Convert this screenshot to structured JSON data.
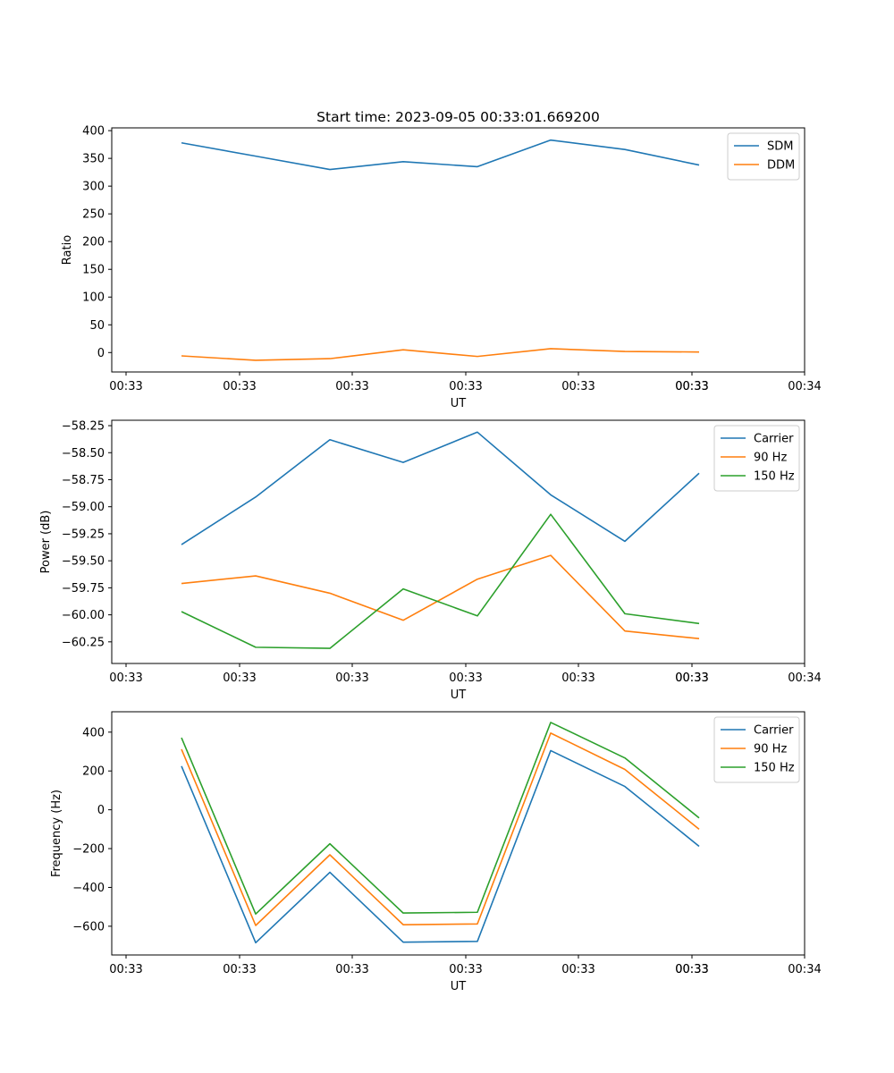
{
  "figure_title": "Start time: 2023-09-05 00:33:01.669200",
  "chart_data": [
    {
      "type": "line",
      "title": "Start time: 2023-09-05 00:33:01.669200",
      "xlabel": "UT",
      "ylabel": "Ratio",
      "x_tick_labels": [
        "00:33",
        "00:33",
        "00:33",
        "00:33",
        "00:33",
        "00:33",
        "00:33"
      ],
      "x_end_label": "00:34",
      "yticks": [
        0,
        50,
        100,
        150,
        200,
        250,
        300,
        350,
        400
      ],
      "ylim": [
        -35,
        405
      ],
      "legend_location": "upper right",
      "series": [
        {
          "name": "SDM",
          "color": "#1f77b4",
          "values": [
            378,
            354,
            330,
            344,
            335,
            383,
            366,
            338
          ]
        },
        {
          "name": "DDM",
          "color": "#ff7f0e",
          "values": [
            -6,
            -14,
            -11,
            5,
            -7,
            7,
            2,
            1
          ]
        }
      ]
    },
    {
      "type": "line",
      "title": "",
      "xlabel": "UT",
      "ylabel": "Power (dB)",
      "x_tick_labels": [
        "00:33",
        "00:33",
        "00:33",
        "00:33",
        "00:33",
        "00:33",
        "00:33"
      ],
      "x_end_label": "00:34",
      "yticks": [
        -60.25,
        -60.0,
        -59.75,
        -59.5,
        -59.25,
        -59.0,
        -58.75,
        -58.5,
        -58.25
      ],
      "ytick_labels": [
        "−60.25",
        "−60.00",
        "−59.75",
        "−59.50",
        "−59.25",
        "−59.00",
        "−58.75",
        "−58.50",
        "−58.25"
      ],
      "ylim": [
        -60.45,
        -58.2
      ],
      "legend_location": "upper right",
      "series": [
        {
          "name": "Carrier",
          "color": "#1f77b4",
          "values": [
            -59.35,
            -58.91,
            -58.38,
            -58.59,
            -58.31,
            -58.89,
            -59.32,
            -58.69
          ]
        },
        {
          "name": "90 Hz",
          "color": "#ff7f0e",
          "values": [
            -59.71,
            -59.64,
            -59.8,
            -60.05,
            -59.67,
            -59.45,
            -60.15,
            -60.22
          ]
        },
        {
          "name": "150 Hz",
          "color": "#2ca02c",
          "values": [
            -59.97,
            -60.3,
            -60.31,
            -59.76,
            -60.01,
            -59.07,
            -59.99,
            -60.08
          ]
        }
      ]
    },
    {
      "type": "line",
      "title": "",
      "xlabel": "UT",
      "ylabel": "Frequency (Hz)",
      "x_tick_labels": [
        "00:33",
        "00:33",
        "00:33",
        "00:33",
        "00:33",
        "00:33",
        "00:33"
      ],
      "x_end_label": "00:34",
      "yticks": [
        -600,
        -400,
        -200,
        0,
        200,
        400
      ],
      "ytick_labels": [
        "−600",
        "−400",
        "−200",
        "0",
        "200",
        "400"
      ],
      "ylim": [
        -748,
        505
      ],
      "legend_location": "upper right",
      "series": [
        {
          "name": "Carrier",
          "color": "#1f77b4",
          "values": [
            225,
            -685,
            -322,
            -682,
            -678,
            305,
            120,
            -188
          ]
        },
        {
          "name": "90 Hz",
          "color": "#ff7f0e",
          "values": [
            312,
            -596,
            -232,
            -592,
            -588,
            395,
            208,
            -100
          ]
        },
        {
          "name": "150 Hz",
          "color": "#2ca02c",
          "values": [
            371,
            -537,
            -175,
            -532,
            -528,
            450,
            267,
            -42
          ]
        }
      ]
    }
  ]
}
